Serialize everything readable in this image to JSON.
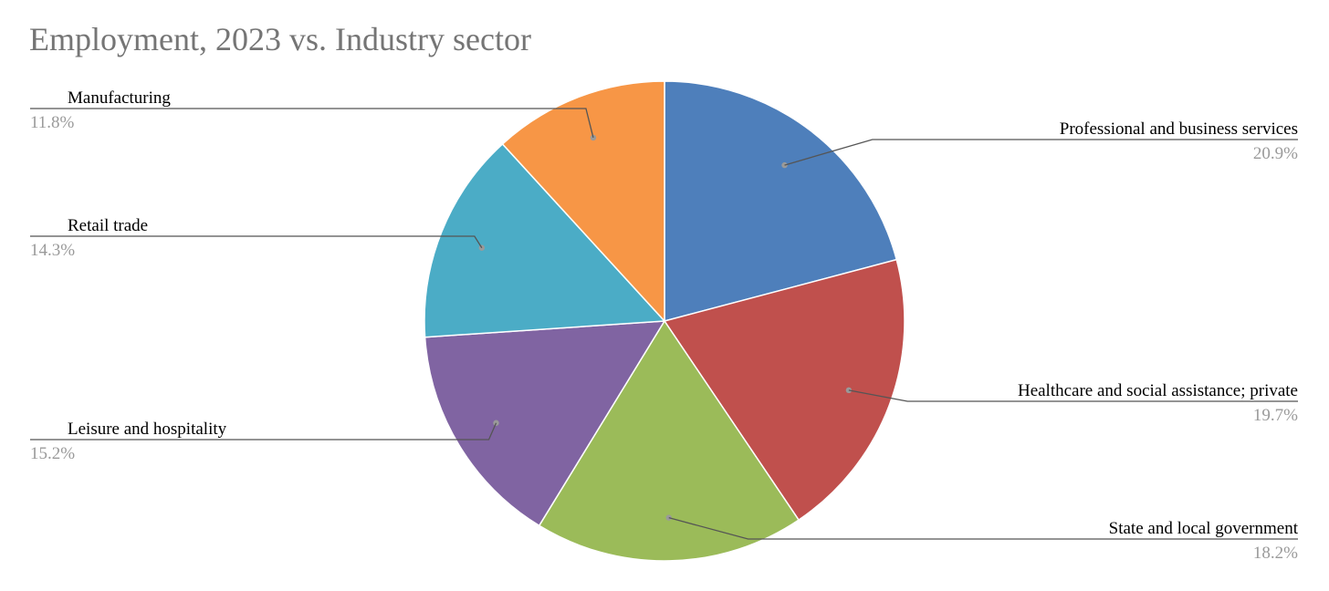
{
  "chart_data": {
    "type": "pie",
    "title": "Employment, 2023 vs. Industry sector",
    "slices": [
      {
        "label": "Professional and business services",
        "value": 20.9,
        "display": "20.9%",
        "color": "#4E7FBB",
        "side": "right"
      },
      {
        "label": "Healthcare and social assistance; private",
        "value": 19.7,
        "display": "19.7%",
        "color": "#C0504D",
        "side": "right"
      },
      {
        "label": "State and local government",
        "value": 18.2,
        "display": "18.2%",
        "color": "#9BBB59",
        "side": "right"
      },
      {
        "label": "Leisure and hospitality",
        "value": 15.2,
        "display": "15.2%",
        "color": "#8064A2",
        "side": "left"
      },
      {
        "label": "Retail trade",
        "value": 14.3,
        "display": "14.3%",
        "color": "#4BACC6",
        "side": "left"
      },
      {
        "label": "Manufacturing",
        "value": 11.8,
        "display": "11.8%",
        "color": "#F79646",
        "side": "left"
      }
    ],
    "start_angle": "12 o'clock",
    "direction": "clockwise",
    "legend": "none",
    "data_labels": "outside with leader lines"
  }
}
